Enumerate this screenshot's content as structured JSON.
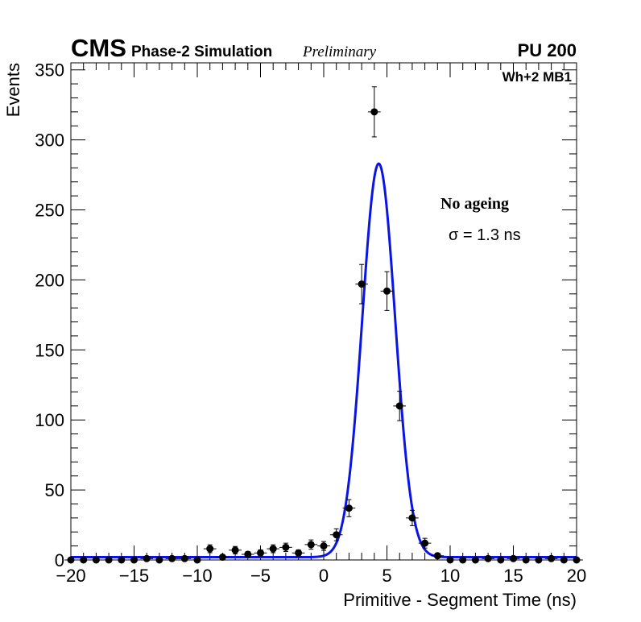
{
  "chart_data": {
    "type": "scatter",
    "header": {
      "experiment": "CMS",
      "simulation": "Phase-2 Simulation",
      "status": "Preliminary",
      "pileup": "PU 200"
    },
    "station_label": "Wh+2 MB1",
    "annotation_title": "No ageing",
    "annotation_sigma": "σ = 1.3 ns",
    "xlabel": "Primitive - Segment Time (ns)",
    "ylabel": "Events",
    "xlim": [
      -20,
      20
    ],
    "ylim": [
      0,
      355
    ],
    "x_ticks": [
      -20,
      -15,
      -10,
      -5,
      0,
      5,
      10,
      15,
      20
    ],
    "x_tick_labels": [
      "−20",
      "−15",
      "−10",
      "−5",
      "0",
      "5",
      "10",
      "15",
      "20"
    ],
    "y_ticks": [
      0,
      50,
      100,
      150,
      200,
      250,
      300,
      350
    ],
    "y_tick_labels": [
      "0",
      "50",
      "100",
      "150",
      "200",
      "250",
      "300",
      "350"
    ],
    "bin_width": 1,
    "points": {
      "x": [
        -20,
        -19,
        -18,
        -17,
        -16,
        -15,
        -14,
        -13,
        -12,
        -11,
        -10,
        -9,
        -8,
        -7,
        -6,
        -5,
        -4,
        -3,
        -2,
        -1,
        0,
        1,
        2,
        3,
        4,
        5,
        6,
        7,
        8,
        9,
        10,
        11,
        12,
        13,
        14,
        15,
        16,
        17,
        18,
        19,
        20
      ],
      "y": [
        0,
        0,
        0,
        0,
        0,
        0,
        1,
        0,
        1,
        1,
        0,
        8,
        2,
        7,
        4,
        5,
        8,
        9,
        5,
        11,
        10,
        18,
        37,
        197,
        320,
        192,
        110,
        30,
        12,
        3,
        0,
        0,
        0,
        1,
        0,
        1,
        0,
        0,
        1,
        0,
        0
      ]
    },
    "fit": {
      "type": "gaussian",
      "amplitude": 281,
      "mean": 4.35,
      "sigma": 1.3,
      "baseline": 2
    },
    "colors": {
      "points": "#000000",
      "fit": "#0a14e6",
      "axes": "#000000"
    }
  }
}
